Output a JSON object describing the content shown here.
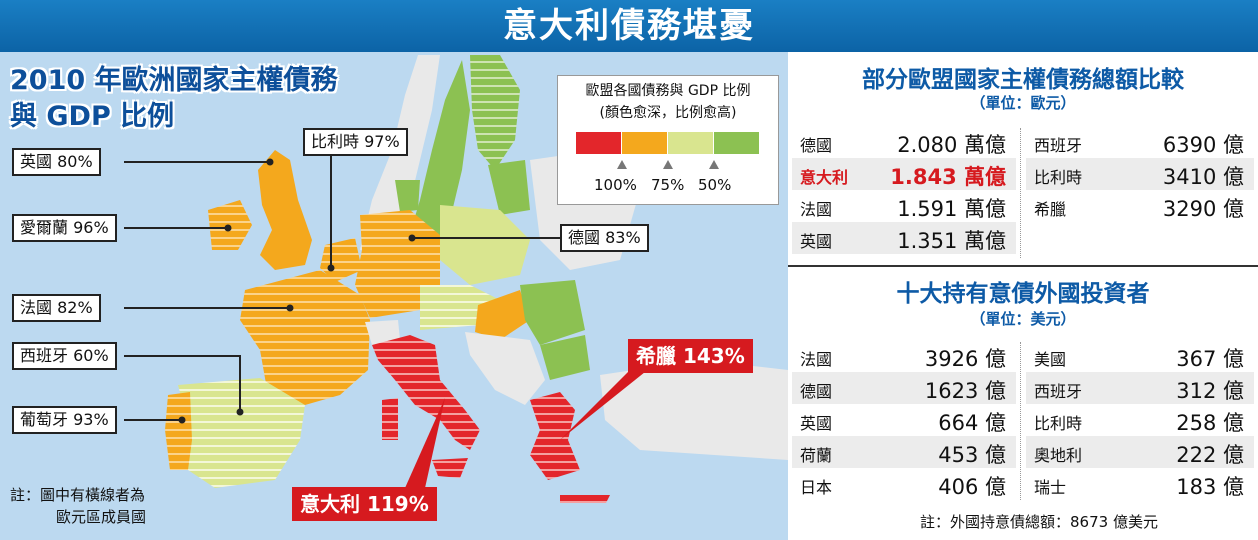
{
  "banner": {
    "title": "意大利債務堪憂"
  },
  "map": {
    "title_line1": "2010 年歐洲國家主權債務",
    "title_line2": "與 GDP 比例",
    "labels": {
      "uk": "英國 80%",
      "ireland": "愛爾蘭 96%",
      "belgium": "比利時 97%",
      "germany": "德國 83%",
      "france": "法國 82%",
      "spain": "西班牙 60%",
      "portugal": "葡萄牙 93%",
      "greece": "希臘 143%",
      "italy": "意大利 119%"
    },
    "note_line1": "註：圖中有橫線者為",
    "note_line2": "歐元區成員國",
    "legend": {
      "title": "歐盟各國債務與 GDP 比例",
      "subtitle": "(顏色愈深，比例愈高)",
      "colors": [
        "#e3262b",
        "#f4a81d",
        "#d9e58f",
        "#8cc152"
      ],
      "ticks": [
        "100%",
        "75%",
        "50%"
      ]
    },
    "colors": {
      "sea": "#bcd9f0",
      "red": "#e3262b",
      "orange": "#f4a81d",
      "light_green": "#d9e58f",
      "green": "#8cc152",
      "land_other": "#e9e9e9"
    }
  },
  "debt": {
    "title": "部分歐盟國家主權債務總額比較",
    "unit": "（單位：歐元）",
    "left": [
      {
        "name": "德國",
        "value": "2.080 萬億"
      },
      {
        "name": "意大利",
        "value": "1.843 萬億"
      },
      {
        "name": "法國",
        "value": "1.591 萬億"
      },
      {
        "name": "英國",
        "value": "1.351 萬億"
      }
    ],
    "right": [
      {
        "name": "西班牙",
        "value": "6390 億"
      },
      {
        "name": "比利時",
        "value": "3410 億"
      },
      {
        "name": "希臘",
        "value": "3290 億"
      }
    ]
  },
  "investors": {
    "title": "十大持有意債外國投資者",
    "unit": "（單位：美元）",
    "left": [
      {
        "name": "法國",
        "value": "3926 億"
      },
      {
        "name": "德國",
        "value": "1623 億"
      },
      {
        "name": "英國",
        "value": "664 億"
      },
      {
        "name": "荷蘭",
        "value": "453 億"
      },
      {
        "name": "日本",
        "value": "406 億"
      }
    ],
    "right": [
      {
        "name": "美國",
        "value": "367 億"
      },
      {
        "name": "西班牙",
        "value": "312 億"
      },
      {
        "name": "比利時",
        "value": "258 億"
      },
      {
        "name": "奧地利",
        "value": "222 億"
      },
      {
        "name": "瑞士",
        "value": "183 億"
      }
    ],
    "note": "註：外國持意債總額：8673 億美元"
  }
}
